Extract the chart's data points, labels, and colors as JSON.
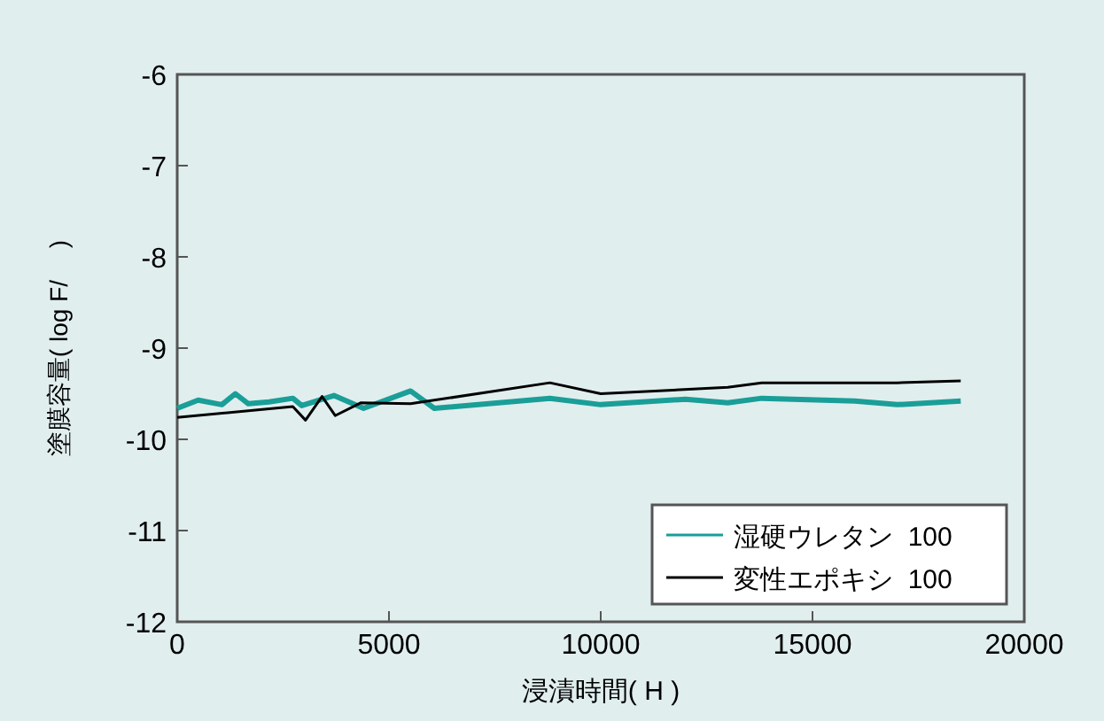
{
  "chart_data": {
    "type": "line",
    "xlabel": "浸漬時間( H )",
    "ylabel": "塗膜容量( log F/　 )",
    "xlim": [
      0,
      20000
    ],
    "xticks": [
      0,
      5000,
      10000,
      15000,
      20000
    ],
    "ylim": [
      -12,
      -6
    ],
    "yticks": [
      -12,
      -11,
      -10,
      -9,
      -8,
      -7,
      -6
    ],
    "grid": false,
    "legend": "bottom right",
    "marker": "none",
    "series": [
      {
        "name": "湿硬ウレタン  100",
        "color": "#1a9e98",
        "x": [
          0,
          494,
          1054,
          1373,
          1680,
          2170,
          2730,
          2940,
          3700,
          4400,
          5510,
          6070,
          8800,
          10000,
          12000,
          13000,
          13800,
          16000,
          17000,
          18500
        ],
        "values": [
          -9.66,
          -9.57,
          -9.62,
          -9.5,
          -9.61,
          -9.59,
          -9.55,
          -9.63,
          -9.52,
          -9.66,
          -9.47,
          -9.66,
          -9.55,
          -9.62,
          -9.56,
          -9.6,
          -9.55,
          -9.58,
          -9.62,
          -9.58
        ]
      },
      {
        "name": "変性エポキシ  100",
        "color": "#000000",
        "x": [
          0,
          2730,
          3030,
          3420,
          3730,
          4330,
          5510,
          8800,
          10000,
          13000,
          13800,
          17000,
          18500
        ],
        "values": [
          -9.76,
          -9.64,
          -9.79,
          -9.53,
          -9.74,
          -9.6,
          -9.61,
          -9.38,
          -9.5,
          -9.43,
          -9.38,
          -9.38,
          -9.36
        ]
      }
    ]
  }
}
